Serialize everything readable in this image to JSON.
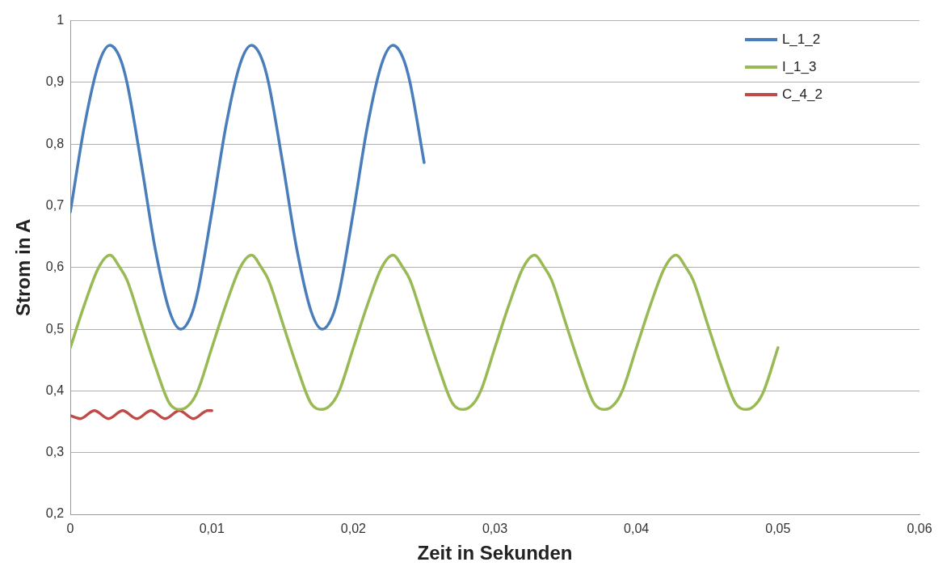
{
  "chart_data": {
    "type": "line",
    "xlabel": "Zeit in Sekunden",
    "ylabel": "Strom in A",
    "xlim": [
      0,
      0.06
    ],
    "ylim": [
      0.2,
      1
    ],
    "xticks": [
      0,
      {
        "value": 0.01,
        "label": "0,01"
      },
      {
        "value": 0.02,
        "label": "0,02"
      },
      {
        "value": 0.03,
        "label": "0,03"
      },
      {
        "value": 0.04,
        "label": "0,04"
      },
      {
        "value": 0.05,
        "label": "0,05"
      },
      {
        "value": 0.06,
        "label": "0,06"
      }
    ],
    "yticks": [
      {
        "value": 0.2,
        "label": "0,2"
      },
      {
        "value": 0.3,
        "label": "0,3"
      },
      {
        "value": 0.4,
        "label": "0,4"
      },
      {
        "value": 0.5,
        "label": "0,5"
      },
      {
        "value": 0.6,
        "label": "0,6"
      },
      {
        "value": 0.7,
        "label": "0,7"
      },
      {
        "value": 0.8,
        "label": "0,8"
      },
      {
        "value": 0.9,
        "label": "0,9"
      },
      1
    ],
    "grid": "y",
    "legend": "top right",
    "marker": "none",
    "line_style": "solid",
    "series": [
      {
        "name": "L_1_2",
        "color": "#4a7ebb",
        "x": [
          0,
          0.001,
          0.002,
          0.0028,
          0.0035,
          0.004,
          0.005,
          0.006,
          0.007,
          0.0078,
          0.0085,
          0.009,
          0.01,
          0.011,
          0.012,
          0.0128,
          0.0135,
          0.014,
          0.015,
          0.016,
          0.017,
          0.0178,
          0.0185,
          0.019,
          0.02,
          0.021,
          0.022,
          0.0228,
          0.0235,
          0.024,
          0.025
        ],
        "values": [
          0.69,
          0.83,
          0.93,
          0.96,
          0.94,
          0.9,
          0.77,
          0.63,
          0.53,
          0.5,
          0.52,
          0.56,
          0.69,
          0.83,
          0.93,
          0.96,
          0.94,
          0.9,
          0.77,
          0.63,
          0.53,
          0.5,
          0.52,
          0.56,
          0.69,
          0.83,
          0.93,
          0.96,
          0.94,
          0.9,
          0.77
        ]
      },
      {
        "name": "I_1_3",
        "color": "#98b954",
        "x": [
          0,
          0.001,
          0.002,
          0.0028,
          0.0035,
          0.004,
          0.005,
          0.006,
          0.007,
          0.0078,
          0.0085,
          0.009,
          0.01,
          0.011,
          0.012,
          0.0128,
          0.0135,
          0.014,
          0.015,
          0.016,
          0.017,
          0.0178,
          0.0185,
          0.019,
          0.02,
          0.021,
          0.022,
          0.0228,
          0.0235,
          0.024,
          0.025,
          0.026,
          0.027,
          0.0278,
          0.0285,
          0.029,
          0.03,
          0.031,
          0.032,
          0.0328,
          0.0335,
          0.034,
          0.035,
          0.036,
          0.037,
          0.0378,
          0.0385,
          0.039,
          0.04,
          0.041,
          0.042,
          0.0428,
          0.0435,
          0.044,
          0.045,
          0.046,
          0.047,
          0.0478,
          0.0485,
          0.049,
          0.05
        ],
        "values": [
          0.47,
          0.54,
          0.6,
          0.62,
          0.6,
          0.58,
          0.51,
          0.44,
          0.38,
          0.37,
          0.38,
          0.4,
          0.47,
          0.54,
          0.6,
          0.62,
          0.6,
          0.58,
          0.51,
          0.44,
          0.38,
          0.37,
          0.38,
          0.4,
          0.47,
          0.54,
          0.6,
          0.62,
          0.6,
          0.58,
          0.51,
          0.44,
          0.38,
          0.37,
          0.38,
          0.4,
          0.47,
          0.54,
          0.6,
          0.62,
          0.6,
          0.58,
          0.51,
          0.44,
          0.38,
          0.37,
          0.38,
          0.4,
          0.47,
          0.54,
          0.6,
          0.62,
          0.6,
          0.58,
          0.51,
          0.44,
          0.38,
          0.37,
          0.38,
          0.4,
          0.47
        ]
      },
      {
        "name": "C_4_2",
        "color": "#be4b48",
        "x": [
          0,
          0.0007,
          0.0017,
          0.0027,
          0.0037,
          0.0047,
          0.0057,
          0.0067,
          0.0077,
          0.0087,
          0.0097,
          0.01
        ],
        "values": [
          0.36,
          0.355,
          0.368,
          0.355,
          0.368,
          0.355,
          0.368,
          0.355,
          0.368,
          0.355,
          0.368,
          0.368
        ]
      }
    ]
  }
}
